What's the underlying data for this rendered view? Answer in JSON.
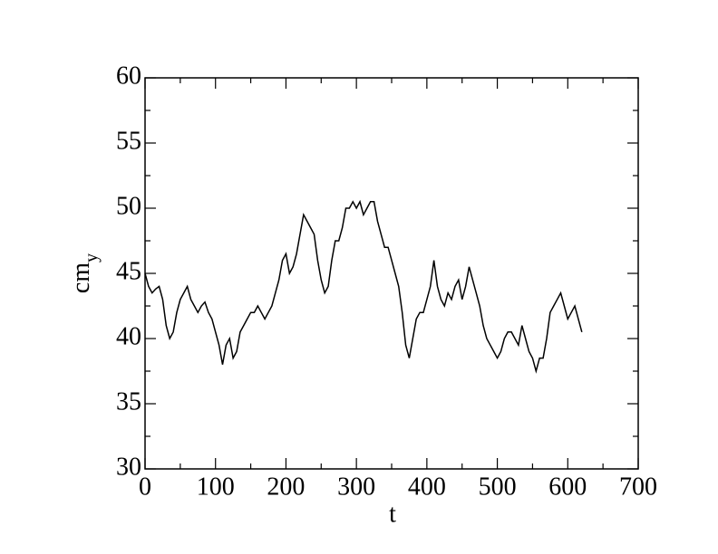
{
  "chart_data": {
    "type": "line",
    "xlabel": "t",
    "ylabel": "cm",
    "ylabel_subscript": "y",
    "xlim": [
      0,
      700
    ],
    "ylim": [
      30,
      60
    ],
    "xticks": [
      0,
      100,
      200,
      300,
      400,
      500,
      600,
      700
    ],
    "yticks": [
      30,
      35,
      40,
      45,
      50,
      55,
      60
    ],
    "xminorticks": [
      50,
      150,
      250,
      350,
      450,
      550,
      650
    ],
    "yminorticks": [
      32.5,
      37.5,
      42.5,
      47.5,
      52.5,
      57.5
    ],
    "x": [
      0,
      5,
      10,
      15,
      20,
      25,
      30,
      35,
      40,
      45,
      50,
      55,
      60,
      65,
      70,
      75,
      80,
      85,
      90,
      95,
      100,
      105,
      110,
      115,
      120,
      125,
      130,
      135,
      140,
      145,
      150,
      155,
      160,
      165,
      170,
      175,
      180,
      185,
      190,
      195,
      200,
      205,
      210,
      215,
      220,
      225,
      230,
      235,
      240,
      245,
      250,
      255,
      260,
      265,
      270,
      275,
      280,
      285,
      290,
      295,
      300,
      305,
      310,
      315,
      320,
      325,
      330,
      335,
      340,
      345,
      350,
      355,
      360,
      365,
      370,
      375,
      380,
      385,
      390,
      395,
      400,
      405,
      410,
      415,
      420,
      425,
      430,
      435,
      440,
      445,
      450,
      455,
      460,
      465,
      470,
      475,
      480,
      485,
      490,
      495,
      500,
      505,
      510,
      515,
      520,
      525,
      530,
      535,
      540,
      545,
      550,
      555,
      560,
      565,
      570,
      575,
      580,
      585,
      590,
      595,
      600,
      605,
      610,
      615,
      620
    ],
    "series": [
      {
        "color": "#000000",
        "values": [
          45,
          44,
          43.5,
          43.8,
          44,
          43,
          41,
          40,
          40.5,
          42,
          43,
          43.5,
          44,
          43,
          42.5,
          42,
          42.5,
          42.8,
          42,
          41.5,
          40.5,
          39.5,
          38,
          39.5,
          40,
          38.5,
          39,
          40.5,
          41,
          41.5,
          42,
          42,
          42.5,
          42,
          41.5,
          42,
          42.5,
          43.5,
          44.5,
          46,
          46.5,
          45,
          45.5,
          46.5,
          48,
          49.5,
          49,
          48.5,
          48,
          46,
          44.5,
          43.5,
          44,
          46,
          47.5,
          47.5,
          48.5,
          50,
          50,
          50.5,
          50,
          50.5,
          49.5,
          50,
          50.5,
          50.5,
          49,
          48,
          47,
          47,
          46,
          45,
          44,
          42,
          39.5,
          38.5,
          40,
          41.5,
          42,
          42,
          43,
          44,
          46,
          44,
          43,
          42.5,
          43.5,
          43,
          44,
          44.5,
          43,
          44,
          45.5,
          44.5,
          43.5,
          42.5,
          41,
          40,
          39.5,
          39,
          38.5,
          39,
          40,
          40.5,
          40.5,
          40,
          39.5,
          41,
          40,
          39,
          38.5,
          37.5,
          38.5,
          38.5,
          40,
          42,
          42.5,
          43,
          43.5,
          42.5,
          41.5,
          42,
          42.5,
          41.5,
          40.5
        ]
      }
    ]
  }
}
